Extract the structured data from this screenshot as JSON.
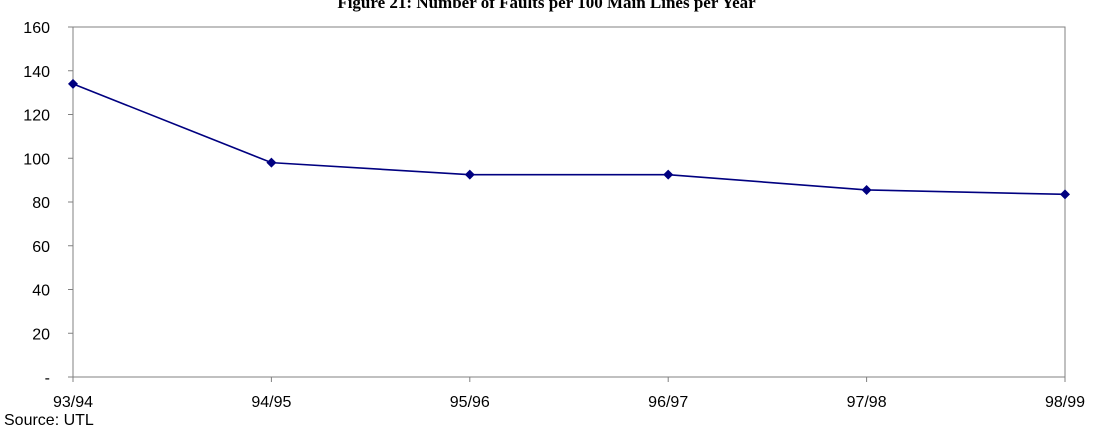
{
  "chart_data": {
    "type": "line",
    "title": "Figure 21: Number of Faults per 100 Main Lines per Year",
    "xlabel": "",
    "ylabel": "",
    "categories": [
      "93/94",
      "94/95",
      "95/96",
      "96/97",
      "97/98",
      "98/99"
    ],
    "series": [
      {
        "values": [
          134,
          98,
          92.5,
          92.5,
          85.5,
          83.5
        ]
      }
    ],
    "ylim": [
      0,
      160
    ],
    "yticks": [
      0,
      20,
      40,
      60,
      80,
      100,
      120,
      140,
      160
    ],
    "ytick_labels": [
      "-",
      "20",
      "40",
      "60",
      "80",
      "100",
      "120",
      "140",
      "160"
    ],
    "grid": false,
    "legend": "none",
    "colors": {
      "series": "#000080",
      "axis": "#808080"
    },
    "source_note": "Source: UTL"
  }
}
